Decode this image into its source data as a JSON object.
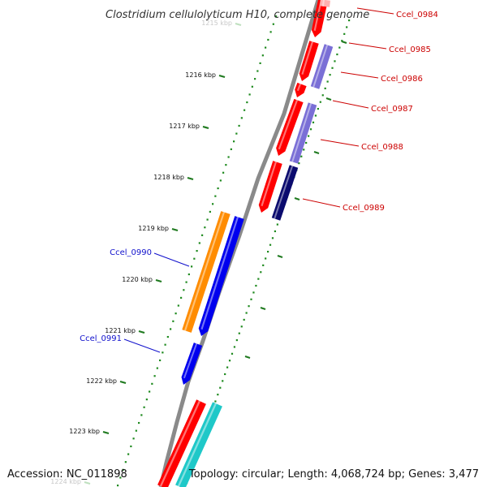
{
  "title": "Clostridium cellulolyticum H10, complete genome",
  "footer": {
    "accession": "Accession: NC_011898",
    "topology": "Topology: circular; Length: 4,068,724 bp; Genes: 3,477"
  },
  "colors": {
    "backbone": "#8a8a8a",
    "tick_dots": "#1f8a1f",
    "tick_major": "#1f7a1f",
    "forward_label": "#cc0000",
    "reverse_label": "#1111cc",
    "red": "#ff0000",
    "lightpurple": "#7a6fd6",
    "navy": "#0b0b6e",
    "orange": "#ff8c00",
    "blue": "#0000ee",
    "cyan": "#1fc8c8"
  },
  "kbp_labels": [
    "1215 kbp",
    "1216 kbp",
    "1217 kbp",
    "1218 kbp",
    "1219 kbp",
    "1220 kbp",
    "1221 kbp",
    "1222 kbp",
    "1223 kbp",
    "1224 kbp"
  ],
  "genes_right": [
    {
      "label": "Ccel_0984",
      "color": "red"
    },
    {
      "label": "Ccel_0985",
      "color": "red"
    },
    {
      "label": "Ccel_0986",
      "color": "lightpurple"
    },
    {
      "label": "Ccel_0987",
      "color": "red"
    },
    {
      "label": "Ccel_0988",
      "color": "lightpurple"
    },
    {
      "label": "Ccel_0989",
      "color": "navy"
    }
  ],
  "genes_left": [
    {
      "label": "Ccel_0990",
      "color": "orange"
    },
    {
      "label": "Ccel_0991",
      "color": "blue"
    }
  ]
}
